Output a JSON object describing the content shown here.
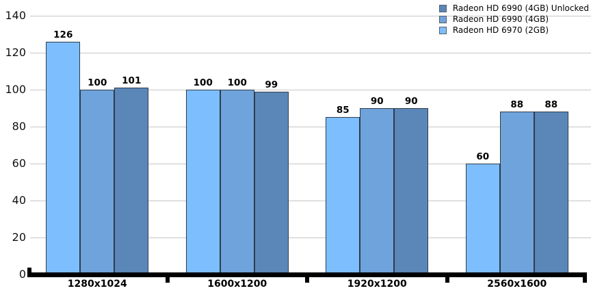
{
  "chart_data": {
    "type": "bar",
    "title": "",
    "xlabel": "",
    "ylabel": "",
    "categories": [
      "1280x1024",
      "1600x1200",
      "1920x1200",
      "2560x1600"
    ],
    "series": [
      {
        "name": "Radeon HD 6970 (2GB)",
        "color": "#7dbeff",
        "values": [
          126,
          100,
          85,
          60
        ]
      },
      {
        "name": "Radeon HD 6990 (4GB)",
        "color": "#6fa3dc",
        "values": [
          100,
          100,
          90,
          88
        ]
      },
      {
        "name": "Radeon HD 6990 (4GB) Unlocked",
        "color": "#5a87b8",
        "values": [
          101,
          99,
          90,
          88
        ]
      }
    ],
    "legend_order": [
      2,
      1,
      0
    ],
    "legend_position": "top-right",
    "ylim": [
      0,
      140
    ],
    "yticks": [
      0,
      20,
      40,
      60,
      80,
      100,
      120,
      140
    ],
    "grid": "horizontal",
    "show_value_labels": true,
    "colors": {
      "gridline": "#c6c6c6",
      "axis": "#000000",
      "bar_border": "#2f3b49",
      "text": "#000000"
    }
  }
}
